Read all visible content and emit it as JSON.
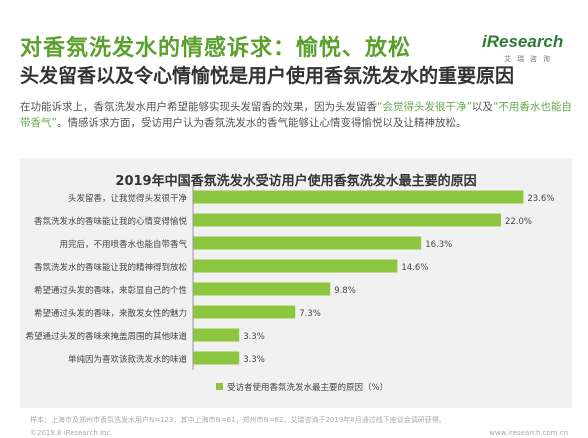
{
  "header": {
    "title": "对香氛洗发水的情感诉求：愉悦、放松",
    "subtitle": "头发留香以及令心情愉悦是用户使用香氛洗发水的重要原因"
  },
  "logo": {
    "text": "iResearch",
    "sub": "艾瑞咨询"
  },
  "description": {
    "part1": "在功能诉求上，香氛洗发水用户希望能够实现头发留香的效果，因为头发留香",
    "highlight1": "“会觉得头发很干净”",
    "part2": "以及",
    "highlight2": "“不用香水也能自带香气”",
    "part3": "。情感诉求方面，受访用户认为香氛洗发水的香气能够让心情变得愉悦以及让精神放松。"
  },
  "chart_data": {
    "type": "bar",
    "orientation": "horizontal",
    "title": "2019年中国香氛洗发水受访用户使用香氛洗发水最主要的原因",
    "categories": [
      "头发留香，让我觉得头发很干净",
      "香氛洗发水的香味能让我的心情变得愉悦",
      "用完后，不用喷香水也能自带香气",
      "香氛洗发水的香味能让我的精神得到放松",
      "希望通过头发的香味，来彰显自己的个性",
      "希望通过头发的香味，来散发女性的魅力",
      "希望通过头发的香味来掩盖周围的其他味道",
      "单纯因为喜欢该款洗发水的味道"
    ],
    "series": [
      {
        "name": "受访者使用香氛洗发水最主要的原因（%）",
        "values": [
          23.6,
          22.0,
          16.3,
          14.6,
          9.8,
          7.3,
          3.3,
          3.3
        ]
      }
    ],
    "value_labels": [
      "23.6%",
      "22.0%",
      "16.3%",
      "14.6%",
      "9.8%",
      "7.3%",
      "3.3%",
      "3.3%"
    ],
    "xlim": [
      0,
      24
    ],
    "grid": false,
    "legend_position": "bottom-center",
    "bar_color": "#8dc63f"
  },
  "footer": {
    "note": "样本：上海市及郑州市香氛洗发水用户N=123，其中上海市N=61，郑州市N=62，艾瑞咨询于2019年8月通过线下座谈会调研获得。",
    "copyright": "©2019.8 iResearch Inc.",
    "website": "www.iresearch.com.cn"
  }
}
